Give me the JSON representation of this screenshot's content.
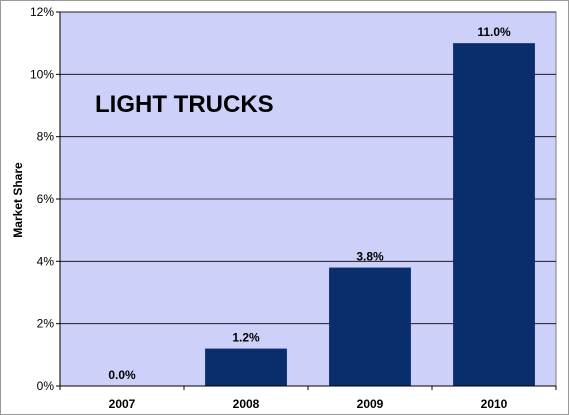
{
  "chart_data": {
    "type": "bar",
    "title": "LIGHT TRUCKS",
    "ylabel": "Market Share",
    "xlabel": "",
    "categories": [
      "2007",
      "2008",
      "2009",
      "2010"
    ],
    "values": [
      0.0,
      1.2,
      3.8,
      11.0
    ],
    "data_labels": [
      "0.0%",
      "1.2%",
      "3.8%",
      "11.0%"
    ],
    "ylim": [
      0,
      12
    ],
    "yticks": [
      0,
      2,
      4,
      6,
      8,
      10,
      12
    ],
    "ytick_labels": [
      "0%",
      "2%",
      "4%",
      "6%",
      "8%",
      "10%",
      "12%"
    ],
    "grid": true,
    "legend": "none",
    "colors": {
      "plot_background": "#cdd0f8",
      "bar": "#0a2d6b",
      "gridline": "#000000"
    }
  }
}
